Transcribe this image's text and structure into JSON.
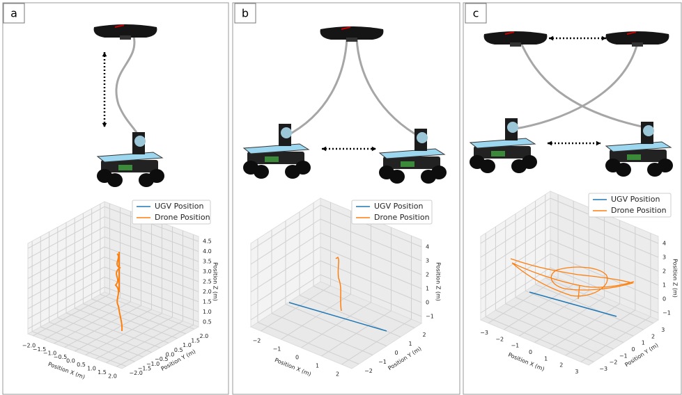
{
  "panels": [
    {
      "label": "a",
      "legend": [
        "UGV Position",
        "Drone Position"
      ],
      "x_axis": {
        "label": "Position X (m)",
        "ticks": [
          "−2.0",
          "−1.5",
          "−1.0",
          "−0.5",
          "0.0",
          "0.5",
          "1.0",
          "1.5",
          "2.0"
        ]
      },
      "y_axis": {
        "label": "Position Y (m)",
        "ticks": [
          "−2.0",
          "−1.5",
          "−1.0",
          "−0.5",
          "0.0",
          "0.5",
          "1.0",
          "1.5",
          "2.0"
        ]
      },
      "z_axis": {
        "label": "Position Z (m)",
        "ticks": [
          "0.5",
          "1.0",
          "1.5",
          "2.0",
          "2.5",
          "3.0",
          "3.5",
          "4.0",
          "4.5"
        ]
      }
    },
    {
      "label": "b",
      "legend": [
        "UGV Position",
        "Drone Position"
      ],
      "x_axis": {
        "label": "Position X (m)",
        "ticks": [
          "−2",
          "−1",
          "0",
          "1",
          "2"
        ]
      },
      "y_axis": {
        "label": "Position Y (m)",
        "ticks": [
          "−2",
          "−1",
          "0",
          "1",
          "2"
        ]
      },
      "z_axis": {
        "label": "Position Z (m)",
        "ticks": [
          "−1",
          "0",
          "1",
          "2",
          "3",
          "4"
        ]
      }
    },
    {
      "label": "c",
      "legend": [
        "UGV Position",
        "Drone Position"
      ],
      "x_axis": {
        "label": "Position X (m)",
        "ticks": [
          "−3",
          "−2",
          "−1",
          "0",
          "1",
          "2",
          "3"
        ]
      },
      "y_axis": {
        "label": "Position Y (m)",
        "ticks": [
          "−3",
          "−2",
          "−1",
          "0",
          "1",
          "2",
          "3"
        ]
      },
      "z_axis": {
        "label": "Position Z (m)",
        "ticks": [
          "−1",
          "0",
          "1",
          "2",
          "3",
          "4"
        ]
      }
    }
  ]
}
